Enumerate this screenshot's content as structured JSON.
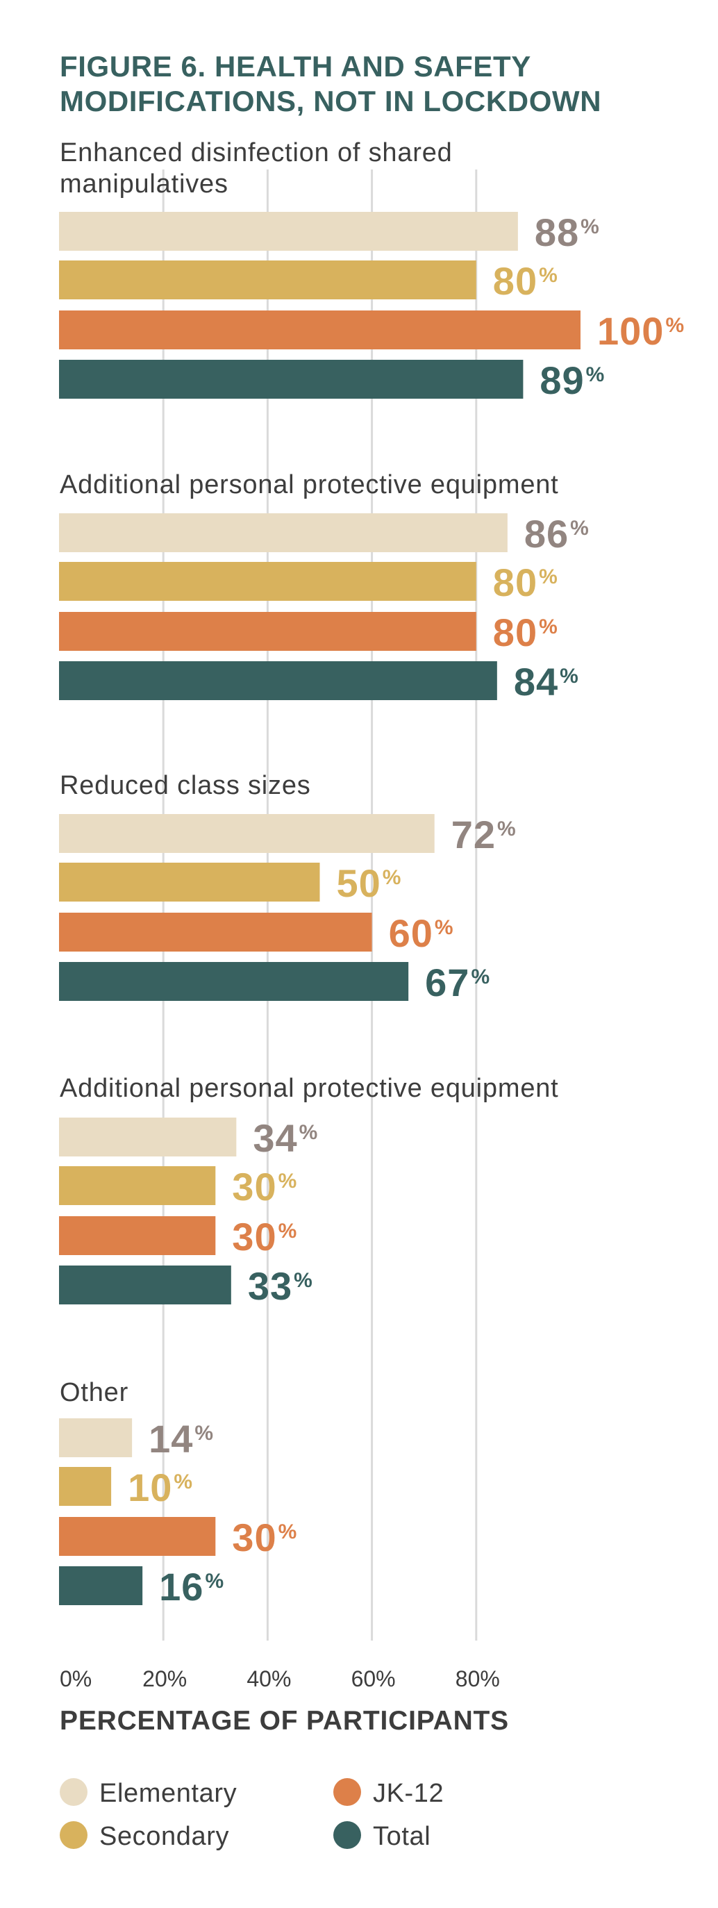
{
  "chart_data": {
    "type": "bar",
    "orientation": "horizontal",
    "title_lines": [
      "FIGURE 6. HEALTH AND SAFETY",
      "MODIFICATIONS, NOT IN LOCKDOWN"
    ],
    "title": "FIGURE 6. HEALTH AND SAFETY MODIFICATIONS, NOT IN LOCKDOWN",
    "xlabel": "PERCENTAGE OF PARTICIPANTS",
    "ylabel": "",
    "xlim": [
      0,
      100
    ],
    "x_ticks": [
      0,
      20,
      40,
      60,
      80
    ],
    "x_tick_labels": [
      "0%",
      "20%",
      "40%",
      "60%",
      "80%"
    ],
    "grid": true,
    "value_suffix": "%",
    "categories": [
      {
        "label_lines": [
          "Enhanced disinfection of shared",
          "manipulatives"
        ]
      },
      {
        "label_lines": [
          "Additional personal protective equipment"
        ]
      },
      {
        "label_lines": [
          "Reduced class sizes"
        ]
      },
      {
        "label_lines": [
          "Additional personal protective equipment"
        ]
      },
      {
        "label_lines": [
          "Other"
        ]
      }
    ],
    "category_names": [
      "Enhanced disinfection of shared manipulatives",
      "Additional personal protective equipment",
      "Reduced class sizes",
      "Additional personal protective equipment",
      "Other"
    ],
    "series": [
      {
        "name": "Elementary",
        "color": "#e9dcc3",
        "label_color": "#928580",
        "values": [
          88,
          86,
          72,
          34,
          14
        ]
      },
      {
        "name": "Secondary",
        "color": "#d8b25d",
        "label_color": "#d8b25d",
        "values": [
          80,
          80,
          50,
          30,
          10
        ]
      },
      {
        "name": "JK-12",
        "color": "#dd8049",
        "label_color": "#dd8049",
        "values": [
          100,
          80,
          60,
          30,
          30
        ]
      },
      {
        "name": "Total",
        "color": "#386160",
        "label_color": "#386160",
        "values": [
          89,
          84,
          67,
          33,
          16
        ]
      }
    ],
    "legend": {
      "placement": "bottom",
      "columns": [
        [
          "Elementary",
          "Secondary"
        ],
        [
          "JK-12",
          "Total"
        ]
      ]
    }
  },
  "colors": {
    "title": "#386160",
    "text": "#3d3d3d",
    "grid": "#dadada"
  }
}
